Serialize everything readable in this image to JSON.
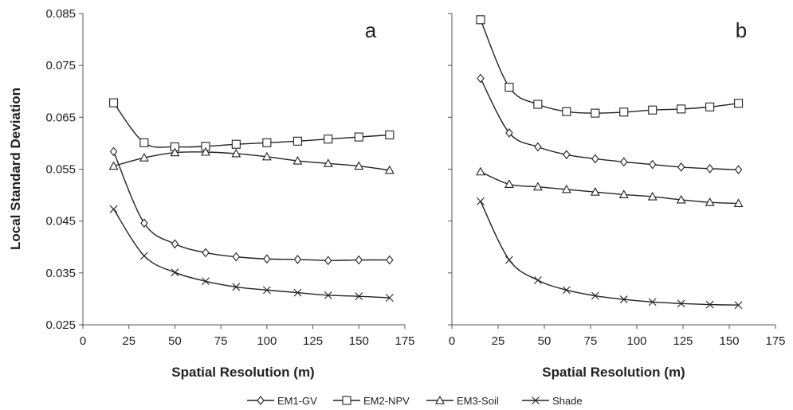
{
  "chart_data": [
    {
      "type": "line",
      "panel_label": "a",
      "title": "",
      "xlabel": "Spatial Resolution (m)",
      "ylabel": "Local Standard Deviation",
      "xlim": [
        0,
        175
      ],
      "ylim": [
        0.025,
        0.085
      ],
      "x_ticks": [
        "0",
        "25",
        "50",
        "75",
        "100",
        "125",
        "150",
        "175"
      ],
      "y_ticks": [
        "0.025",
        "0.035",
        "0.045",
        "0.055",
        "0.065",
        "0.075",
        "0.085"
      ],
      "grid": false,
      "x": [
        16.7,
        33.3,
        50,
        66.7,
        83.3,
        100,
        116.7,
        133.3,
        150,
        166.7
      ],
      "series": [
        {
          "name": "EM1-GV",
          "marker": "diamond",
          "values": [
            0.0584,
            0.0446,
            0.0406,
            0.0389,
            0.0381,
            0.0377,
            0.0376,
            0.0374,
            0.0375,
            0.0375
          ]
        },
        {
          "name": "EM2-NPV",
          "marker": "square",
          "values": [
            0.0678,
            0.0601,
            0.0593,
            0.0594,
            0.0598,
            0.0601,
            0.0604,
            0.0608,
            0.0612,
            0.0616
          ]
        },
        {
          "name": "EM3-Soil",
          "marker": "triangle",
          "values": [
            0.0556,
            0.0572,
            0.0582,
            0.0583,
            0.058,
            0.0574,
            0.0566,
            0.0561,
            0.0556,
            0.0548
          ]
        },
        {
          "name": "Shade",
          "marker": "x",
          "values": [
            0.0473,
            0.0383,
            0.0351,
            0.0334,
            0.0323,
            0.0317,
            0.0312,
            0.0307,
            0.0305,
            0.0302
          ]
        }
      ]
    },
    {
      "type": "line",
      "panel_label": "b",
      "title": "",
      "xlabel": "Spatial Resolution (m)",
      "ylabel": "",
      "xlim": [
        0,
        175
      ],
      "ylim": [
        0.025,
        0.085
      ],
      "x_ticks": [
        "0",
        "25",
        "50",
        "75",
        "100",
        "125",
        "150",
        "175"
      ],
      "y_ticks": [],
      "grid": false,
      "x": [
        15.5,
        31,
        46.5,
        62,
        77.5,
        93,
        108.5,
        124,
        139.5,
        155
      ],
      "series": [
        {
          "name": "EM1-GV",
          "marker": "diamond",
          "values": [
            0.0725,
            0.062,
            0.0593,
            0.0578,
            0.057,
            0.0564,
            0.0559,
            0.0554,
            0.0551,
            0.0549
          ]
        },
        {
          "name": "EM2-NPV",
          "marker": "square",
          "values": [
            0.0838,
            0.0708,
            0.0675,
            0.0661,
            0.0658,
            0.066,
            0.0664,
            0.0666,
            0.067,
            0.0677
          ]
        },
        {
          "name": "EM3-Soil",
          "marker": "triangle",
          "values": [
            0.0545,
            0.0521,
            0.0516,
            0.0511,
            0.0506,
            0.0501,
            0.0497,
            0.0491,
            0.0486,
            0.0484
          ]
        },
        {
          "name": "Shade",
          "marker": "x",
          "values": [
            0.0488,
            0.0375,
            0.0336,
            0.0317,
            0.0306,
            0.0299,
            0.0294,
            0.0291,
            0.0289,
            0.0288
          ]
        }
      ]
    }
  ],
  "legend": {
    "position": "bottom-center",
    "entries": [
      {
        "label": "EM1-GV",
        "marker": "diamond"
      },
      {
        "label": "EM2-NPV",
        "marker": "square"
      },
      {
        "label": "EM3-Soil",
        "marker": "triangle"
      },
      {
        "label": "Shade",
        "marker": "x"
      }
    ]
  }
}
